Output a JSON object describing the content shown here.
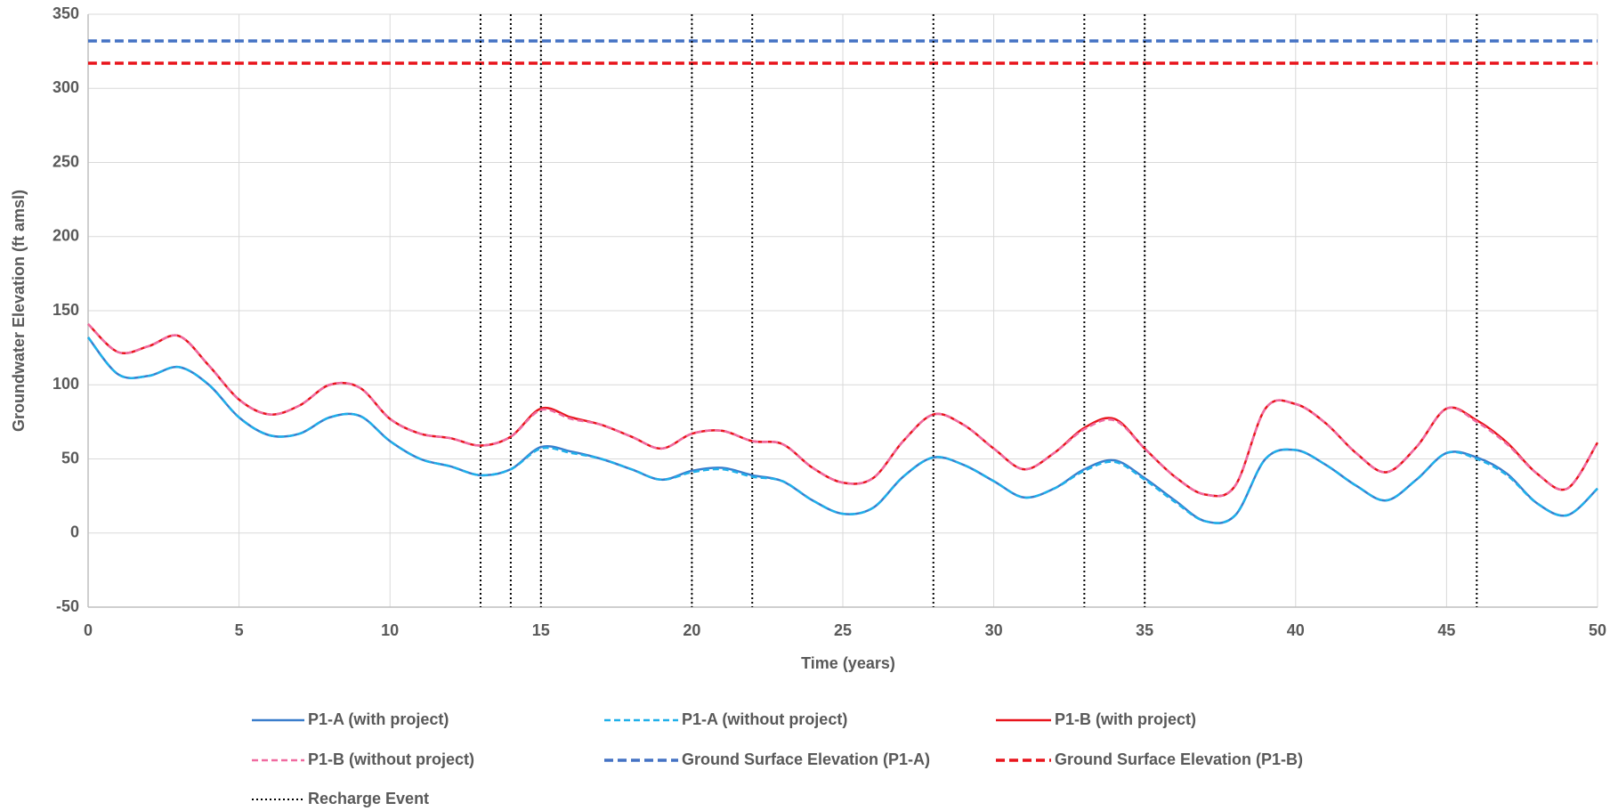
{
  "chart_data": {
    "type": "line",
    "xlabel": "Time (years)",
    "ylabel": "Groundwater Elevation (ft amsl)",
    "xlim": [
      0,
      50
    ],
    "xticks": [
      0,
      5,
      10,
      15,
      20,
      25,
      30,
      35,
      40,
      45,
      50
    ],
    "ylim": [
      -50,
      350
    ],
    "yticks": [
      -50,
      0,
      50,
      100,
      150,
      200,
      250,
      300,
      350
    ],
    "grid": true,
    "legend": "bottom",
    "series": [
      {
        "name": "P1-A (with project)",
        "color": "#3a7dcc",
        "style": "solid",
        "x": [
          0,
          1,
          2,
          3,
          4,
          5,
          6,
          7,
          8,
          9,
          10,
          11,
          12,
          13,
          14,
          15,
          16,
          17,
          18,
          19,
          20,
          21,
          22,
          23,
          24,
          25,
          26,
          27,
          28,
          29,
          30,
          31,
          32,
          33,
          34,
          35,
          36,
          37,
          38,
          39,
          40,
          41,
          42,
          43,
          44,
          45,
          46,
          47,
          48,
          49,
          50
        ],
        "values": [
          132,
          107,
          106,
          112,
          100,
          78,
          66,
          67,
          78,
          79,
          62,
          50,
          45,
          39,
          43,
          58,
          55,
          50,
          43,
          36,
          42,
          44,
          39,
          35,
          22,
          13,
          17,
          38,
          51,
          46,
          35,
          24,
          30,
          43,
          49,
          37,
          22,
          8,
          12,
          50,
          56,
          46,
          32,
          22,
          36,
          54,
          51,
          40,
          20,
          12,
          30
        ]
      },
      {
        "name": "P1-A (without project)",
        "color": "#1fb0ea",
        "style": "dashed",
        "x": [
          0,
          1,
          2,
          3,
          4,
          5,
          6,
          7,
          8,
          9,
          10,
          11,
          12,
          13,
          14,
          15,
          16,
          17,
          18,
          19,
          20,
          21,
          22,
          23,
          24,
          25,
          26,
          27,
          28,
          29,
          30,
          31,
          32,
          33,
          34,
          35,
          36,
          37,
          38,
          39,
          40,
          41,
          42,
          43,
          44,
          45,
          46,
          47,
          48,
          49,
          50
        ],
        "values": [
          132,
          107,
          106,
          112,
          100,
          78,
          66,
          67,
          78,
          79,
          62,
          50,
          45,
          39,
          43,
          57,
          54,
          50,
          43,
          36,
          41,
          43,
          38,
          35,
          22,
          13,
          17,
          38,
          51,
          46,
          35,
          24,
          30,
          42,
          48,
          36,
          21,
          8,
          12,
          50,
          56,
          46,
          32,
          22,
          36,
          54,
          50,
          39,
          20,
          12,
          30
        ]
      },
      {
        "name": "P1-B (with project)",
        "color": "#e8141b",
        "style": "solid",
        "x": [
          0,
          1,
          2,
          3,
          4,
          5,
          6,
          7,
          8,
          9,
          10,
          11,
          12,
          13,
          14,
          15,
          16,
          17,
          18,
          19,
          20,
          21,
          22,
          23,
          24,
          25,
          26,
          27,
          28,
          29,
          30,
          31,
          32,
          33,
          34,
          35,
          36,
          37,
          38,
          39,
          40,
          41,
          42,
          43,
          44,
          45,
          46,
          47,
          48,
          49,
          50
        ],
        "values": [
          141,
          122,
          126,
          133,
          113,
          90,
          80,
          86,
          100,
          98,
          77,
          67,
          64,
          59,
          65,
          84,
          78,
          73,
          65,
          57,
          67,
          69,
          62,
          60,
          44,
          34,
          37,
          62,
          80,
          73,
          57,
          43,
          54,
          71,
          77,
          57,
          38,
          26,
          32,
          84,
          87,
          74,
          54,
          41,
          58,
          84,
          76,
          61,
          40,
          30,
          61
        ]
      },
      {
        "name": "P1-B (without project)",
        "color": "#f06aa0",
        "style": "dashed",
        "x": [
          0,
          1,
          2,
          3,
          4,
          5,
          6,
          7,
          8,
          9,
          10,
          11,
          12,
          13,
          14,
          15,
          16,
          17,
          18,
          19,
          20,
          21,
          22,
          23,
          24,
          25,
          26,
          27,
          28,
          29,
          30,
          31,
          32,
          33,
          34,
          35,
          36,
          37,
          38,
          39,
          40,
          41,
          42,
          43,
          44,
          45,
          46,
          47,
          48,
          49,
          50
        ],
        "values": [
          141,
          122,
          126,
          133,
          113,
          90,
          80,
          86,
          100,
          98,
          77,
          67,
          64,
          59,
          65,
          83,
          77,
          73,
          65,
          57,
          67,
          69,
          62,
          60,
          44,
          34,
          37,
          62,
          80,
          73,
          57,
          43,
          54,
          70,
          76,
          57,
          38,
          26,
          32,
          84,
          87,
          74,
          54,
          41,
          58,
          84,
          75,
          60,
          40,
          30,
          61
        ]
      },
      {
        "name": "Ground Surface Elevation (P1-A)",
        "color": "#4472c4",
        "style": "thick-dashed",
        "x": [
          0,
          50
        ],
        "values": [
          332,
          332
        ]
      },
      {
        "name": "Ground Surface Elevation (P1-B)",
        "color": "#e8141b",
        "style": "thick-dashed",
        "x": [
          0,
          50
        ],
        "values": [
          317,
          317
        ]
      }
    ],
    "vlines": {
      "name": "Recharge Event",
      "color": "#000000",
      "style": "dotted",
      "x": [
        13,
        14,
        15,
        20,
        22,
        28,
        33,
        35,
        46
      ]
    }
  }
}
